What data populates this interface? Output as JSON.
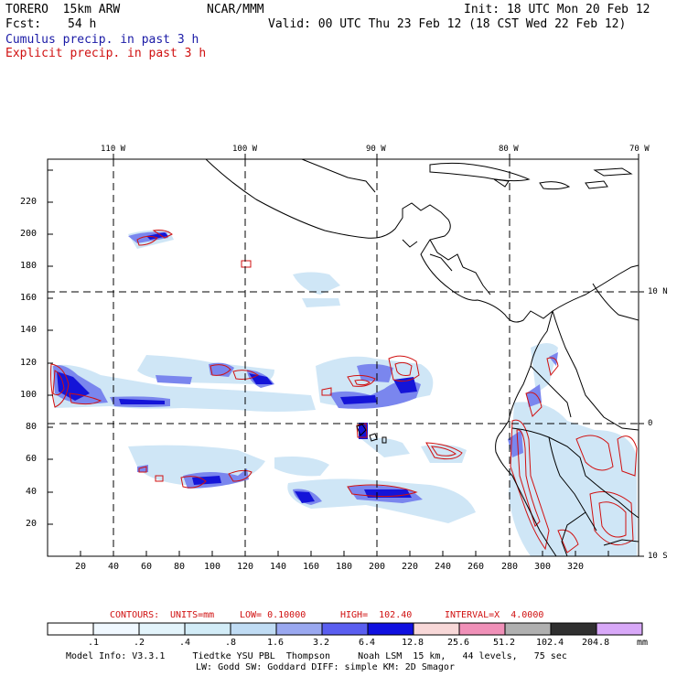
{
  "header": {
    "model": "TORERO  15km ARW",
    "org": "NCAR/MMM",
    "init": "Init: 18 UTC Mon 20 Feb 12",
    "fcst_label": "Fcst:",
    "fcst_value": "54 h",
    "valid": "Valid: 00 UTC Thu 23 Feb 12 (18 CST Wed 22 Feb 12)",
    "field1": "Cumulus precip. in past 3 h",
    "field2": "Explicit precip. in past 3 h"
  },
  "colors": {
    "cumulus": "#1a1aa6",
    "explicit": "#d01010",
    "coast": "#000000"
  },
  "map": {
    "lon_labels": [
      "110 W",
      "100 W",
      "90 W",
      "80 W",
      "70 W"
    ],
    "lat_labels": [
      "10 N",
      "0",
      "10 S"
    ],
    "y_ticks": [
      "20",
      "40",
      "60",
      "80",
      "100",
      "120",
      "140",
      "160",
      "180",
      "200",
      "220"
    ],
    "x_ticks": [
      "20",
      "40",
      "60",
      "80",
      "100",
      "120",
      "140",
      "160",
      "180",
      "200",
      "220",
      "240",
      "260",
      "280",
      "300",
      "320"
    ]
  },
  "contours": {
    "label": "CONTOURS:",
    "units": "UNITS=mm",
    "low": "LOW= 0.10000",
    "high": "HIGH=  102.40",
    "interval": "INTERVAL=X  4.0000"
  },
  "colorbar": {
    "labels": [
      ".1",
      ".2",
      ".4",
      ".8",
      "1.6",
      "3.2",
      "6.4",
      "12.8",
      "25.6",
      "51.2",
      "102.4",
      "204.8"
    ],
    "unit": "mm",
    "colors": [
      "#ffffff",
      "#f0f8ff",
      "#e3f4fb",
      "#d2ecf7",
      "#c0dcf4",
      "#9aa8f0",
      "#5a5ef0",
      "#1010e0",
      "#f8d8d8",
      "#f090b8",
      "#b0b0b0",
      "#303030",
      "#d8a8f8"
    ]
  },
  "footer": {
    "line1": "Model Info: V3.3.1     Tiedtke YSU PBL  Thompson     Noah LSM  15 km,   44 levels,   75 sec",
    "line2": "LW: Godd SW: Goddard DIFF: simple KM: 2D Smagor"
  }
}
